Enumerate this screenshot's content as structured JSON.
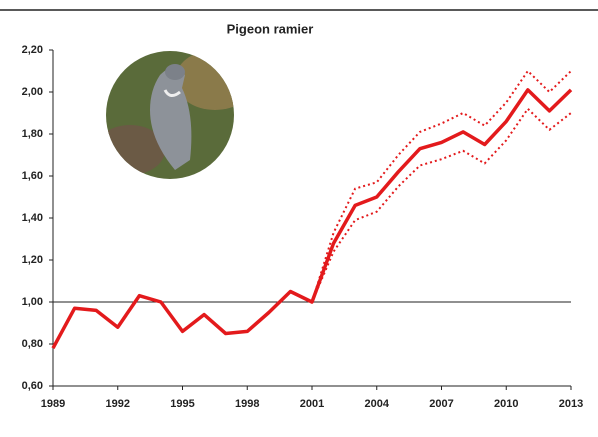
{
  "chart_data": {
    "type": "line",
    "title": "Pigeon ramier",
    "x": [
      1989,
      1990,
      1991,
      1992,
      1993,
      1994,
      1995,
      1996,
      1997,
      1998,
      1999,
      2000,
      2001,
      2002,
      2003,
      2004,
      2005,
      2006,
      2007,
      2008,
      2009,
      2010,
      2011,
      2012,
      2013
    ],
    "series": [
      {
        "color": "#e31a1c",
        "style": "solid",
        "values": [
          0.78,
          0.97,
          0.96,
          0.88,
          1.03,
          1.0,
          0.86,
          0.94,
          0.85,
          0.86,
          0.95,
          1.05,
          1.0,
          1.28,
          1.46,
          1.5,
          1.62,
          1.73,
          1.76,
          1.81,
          1.75,
          1.86,
          2.01,
          1.91,
          2.01
        ]
      },
      {
        "color": "#e31a1c",
        "style": "dotted",
        "values": [
          null,
          null,
          null,
          null,
          null,
          null,
          null,
          null,
          null,
          null,
          null,
          null,
          1.0,
          1.33,
          1.54,
          1.57,
          1.7,
          1.81,
          1.85,
          1.9,
          1.84,
          1.95,
          2.1,
          2.0,
          2.1
        ]
      },
      {
        "color": "#e31a1c",
        "style": "dotted",
        "values": [
          null,
          null,
          null,
          null,
          null,
          null,
          null,
          null,
          null,
          null,
          null,
          null,
          1.0,
          1.24,
          1.39,
          1.43,
          1.55,
          1.65,
          1.68,
          1.72,
          1.66,
          1.77,
          1.92,
          1.82,
          1.9
        ]
      }
    ],
    "xlim": [
      1989,
      2013
    ],
    "xticks": [
      1989,
      1992,
      1995,
      1998,
      2001,
      2004,
      2007,
      2010,
      2013
    ],
    "ylim": [
      0.6,
      2.2
    ],
    "yticks": [
      {
        "value": 0.6,
        "label": "0,60"
      },
      {
        "value": 0.8,
        "label": "0,80"
      },
      {
        "value": 1.0,
        "label": "1,00"
      },
      {
        "value": 1.2,
        "label": "1,20"
      },
      {
        "value": 1.4,
        "label": "1,40"
      },
      {
        "value": 1.6,
        "label": "1,60"
      },
      {
        "value": 1.8,
        "label": "1,80"
      },
      {
        "value": 2.0,
        "label": "2,00"
      },
      {
        "value": 2.2,
        "label": "2,20"
      }
    ],
    "reference_line": 1.0,
    "grid": false
  }
}
